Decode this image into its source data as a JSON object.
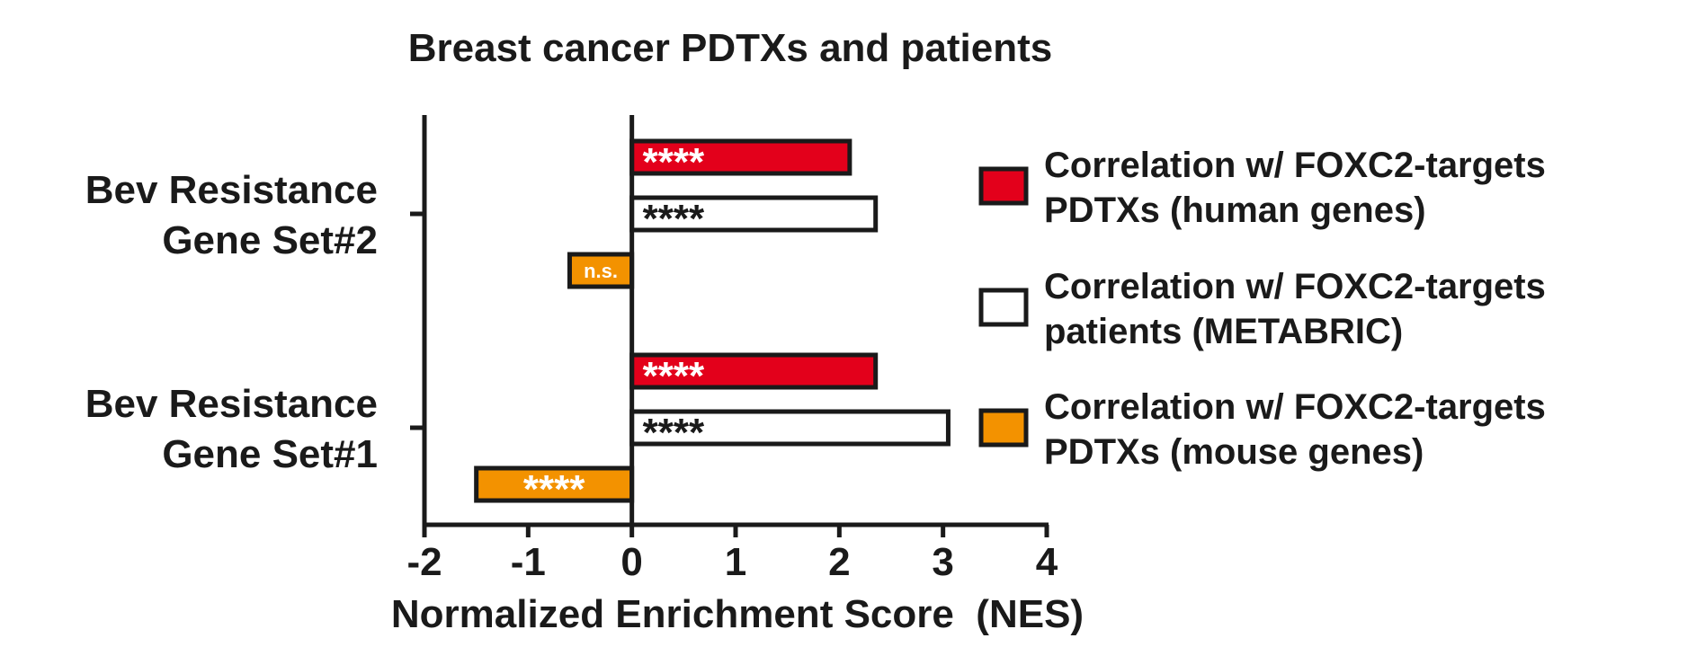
{
  "chart_data": {
    "type": "bar",
    "orientation": "horizontal",
    "title": "Breast cancer PDTXs and patients",
    "xlabel": "Normalized Enrichment Score  (NES)",
    "ylabel": "",
    "xlim": [
      -2,
      4
    ],
    "xticks": [
      "-2",
      "-1",
      "0",
      "1",
      "2",
      "3",
      "4"
    ],
    "grid": false,
    "legend_position": "right",
    "categories": [
      {
        "line1": "Bev Resistance",
        "line2": "Gene Set#2"
      },
      {
        "line1": "Bev Resistance",
        "line2": "Gene Set#1"
      }
    ],
    "series": [
      {
        "name_line1": "Correlation w/ FOXC2-targets",
        "name_line2": "PDTXs (human genes)",
        "fill": "#e3001b",
        "label_color": "#ffffff",
        "values": [
          2.1,
          2.35
        ],
        "labels": [
          "****",
          "****"
        ]
      },
      {
        "name_line1": "Correlation w/ FOXC2-targets",
        "name_line2": "patients (METABRIC)",
        "fill": "#ffffff",
        "label_color": "#1a1a1a",
        "values": [
          2.35,
          3.05
        ],
        "labels": [
          "****",
          "****"
        ]
      },
      {
        "name_line1": "Correlation w/ FOXC2-targets",
        "name_line2": "PDTXs (mouse genes)",
        "fill": "#f39200",
        "label_color": "#ffffff",
        "values": [
          -0.6,
          -1.5
        ],
        "labels": [
          "n.s.",
          "****"
        ]
      }
    ]
  }
}
